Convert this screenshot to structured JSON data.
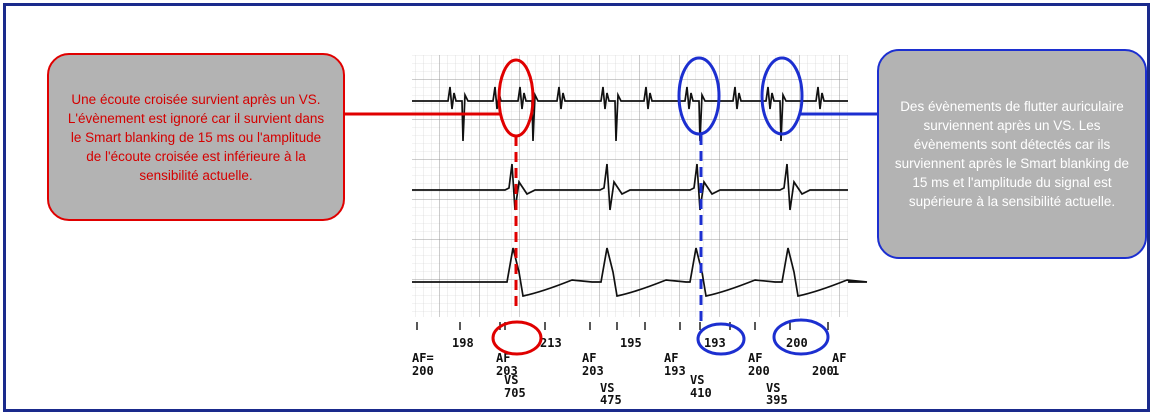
{
  "callouts": {
    "left_text": "Une écoute croisée survient après un VS. L'évènement est ignoré car il survient dans le Smart blanking de 15 ms ou l'amplitude de l'écoute croisée est inférieure à la sensibilité actuelle.",
    "right_text": "Des évènements de flutter auriculaire surviennent après un VS. Les évènements sont détectés car ils surviennent après le Smart blanking de 15 ms et l'amplitude du signal est supérieure à la sensibilité actuelle."
  },
  "marker_labels": {
    "row1": [
      "198",
      "213",
      "195",
      "193",
      "200"
    ],
    "row2": [
      "AF",
      "AF",
      "AF",
      "AF",
      "AF"
    ],
    "row2_values": [
      "200",
      "203",
      "203",
      "193",
      "200",
      "200",
      "1"
    ],
    "row3": [
      "VS",
      "VS"
    ],
    "row3_values": [
      "705",
      "410"
    ],
    "row4": [
      "VS",
      "VS"
    ],
    "row4_values": [
      "475",
      "395"
    ],
    "left_edge": "AF="
  },
  "colors": {
    "frame": "#1a2a8c",
    "crosstalk": "#e00000",
    "flutter": "#1c2fd0",
    "callout_fill": "#b3b3b3"
  }
}
